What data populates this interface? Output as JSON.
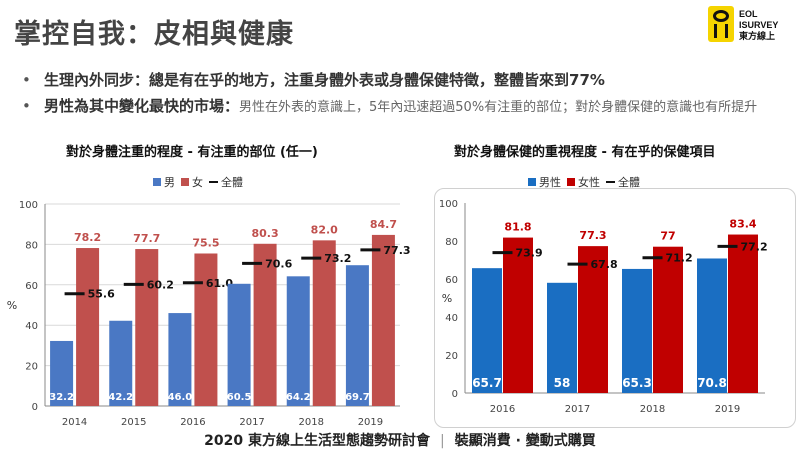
{
  "title": "掌控自我：皮相與健康",
  "logo": {
    "line1": "EOL",
    "line2": "ISURVEY",
    "line3": "東方線上",
    "icon": "eol-logo-icon"
  },
  "bullets": [
    {
      "strong": "生理內外同步：總是有在乎的地方，注重身體外表或身體保健特徵，整體皆來到77%",
      "light": ""
    },
    {
      "strong": "男性為其中變化最快的市場：",
      "light": "男性在外表的意識上，5年內迅速超過50%有注重的部位；對於身體保健的意識也有所提升"
    }
  ],
  "footer": {
    "left": "2020 東方線上生活型態趨勢研討會",
    "sep": "|",
    "right": "裝顯消費 · 變動式購買"
  },
  "colors": {
    "male": "#4a78c4",
    "female": "#c0504d",
    "male2": "#1a6ec2",
    "female2": "#c00000",
    "total": "#111111"
  },
  "chart_data": [
    {
      "type": "bar",
      "title": "對於身體注重的程度 - 有注重的部位 (任一)",
      "categories": [
        "2014",
        "2015",
        "2016",
        "2017",
        "2018",
        "2019"
      ],
      "series": [
        {
          "name": "男",
          "values": [
            32.2,
            42.2,
            46.0,
            60.5,
            64.2,
            69.7
          ]
        },
        {
          "name": "女",
          "values": [
            78.2,
            77.7,
            75.5,
            80.3,
            82.0,
            84.7
          ]
        },
        {
          "name": "全體",
          "values": [
            55.6,
            60.2,
            61.0,
            70.6,
            73.2,
            77.3
          ]
        }
      ],
      "value_labels": {
        "男": [
          "32.2",
          "42.2",
          "46.0",
          "60.5",
          "64.2",
          "69.7"
        ],
        "女": [
          "78.2",
          "77.7",
          "75.5",
          "80.3",
          "82.0",
          "84.7"
        ],
        "全體": [
          "55.6",
          "60.2",
          "61.0",
          "70.6",
          "73.2",
          "77.3"
        ]
      },
      "ylabel": "%",
      "ylim": [
        0,
        100
      ],
      "yticks": [
        "0",
        "20",
        "40",
        "60",
        "80",
        "100"
      ],
      "grid": true,
      "legend": "top"
    },
    {
      "type": "bar",
      "title": "對於身體保健的重視程度 - 有在乎的保健項目",
      "categories": [
        "2016",
        "2017",
        "2018",
        "2019"
      ],
      "series": [
        {
          "name": "男性",
          "values": [
            65.7,
            58,
            65.3,
            70.8
          ]
        },
        {
          "name": "女性",
          "values": [
            81.8,
            77.3,
            77,
            83.4
          ]
        },
        {
          "name": "全體",
          "values": [
            73.9,
            67.8,
            71.2,
            77.2
          ]
        }
      ],
      "value_labels": {
        "男性": [
          "65.7",
          "58",
          "65.3",
          "70.8"
        ],
        "女性": [
          "81.8",
          "77.3",
          "77",
          "83.4"
        ],
        "全體": [
          "73.9",
          "67.8",
          "71.2",
          "77.2"
        ]
      },
      "ylabel": "%",
      "ylim": [
        0,
        100
      ],
      "yticks": [
        "0",
        "20",
        "40",
        "60",
        "80",
        "100"
      ],
      "grid": true,
      "legend": "top"
    }
  ]
}
